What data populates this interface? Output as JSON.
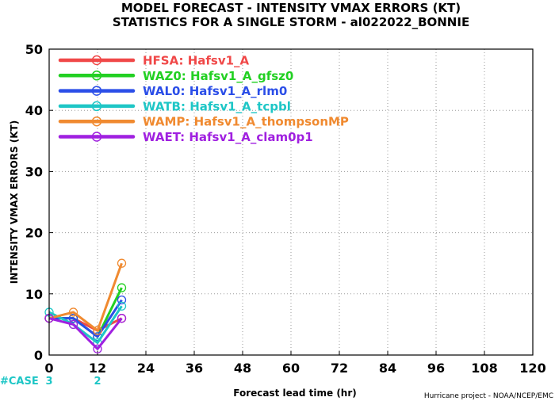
{
  "chart_data": {
    "type": "line",
    "title": "MODEL FORECAST - INTENSITY VMAX ERRORS (KT)",
    "subtitle": "STATISTICS FOR A SINGLE STORM - al022022_BONNIE",
    "xlabel": "Forecast lead time (hr)",
    "ylabel": "INTENSITY VMAX ERRORS (KT)",
    "credit": "Hurricane project - NOAA/NCEP/EMC",
    "xlim": [
      0,
      120
    ],
    "ylim": [
      0,
      50
    ],
    "xticks": [
      0,
      12,
      24,
      36,
      48,
      60,
      72,
      84,
      96,
      108,
      120
    ],
    "yticks": [
      0,
      10,
      20,
      30,
      40,
      50
    ],
    "grid": true,
    "legend_position": "top-left",
    "x": [
      0,
      6,
      12,
      18
    ],
    "series": [
      {
        "name": "HFSA: Hafsv1_A",
        "color": "#f04848",
        "values": [
          6,
          6,
          4,
          6
        ]
      },
      {
        "name": "WAZ0: Hafsv1_A_gfsz0",
        "color": "#22d022",
        "values": [
          6,
          6,
          3,
          11
        ]
      },
      {
        "name": "WAL0: Hafsv1_A_rlm0",
        "color": "#2b4ee8",
        "values": [
          6,
          6,
          3,
          9
        ]
      },
      {
        "name": "WATB: Hafsv1_A_tcpbl",
        "color": "#1ec6c6",
        "values": [
          7,
          5,
          2,
          8
        ]
      },
      {
        "name": "WAMP: Hafsv1_A_thompsonMP",
        "color": "#f08a30",
        "values": [
          6,
          7,
          4,
          15
        ]
      },
      {
        "name": "WAET: Hafsv1_A_clam0p1",
        "color": "#a020e0",
        "values": [
          6,
          5,
          1,
          6
        ]
      }
    ],
    "case_label": "#CASE",
    "case_counts": [
      {
        "x": 0,
        "count": "3"
      },
      {
        "x": 12,
        "count": "2"
      }
    ],
    "case_color": "#1ec6c6"
  }
}
